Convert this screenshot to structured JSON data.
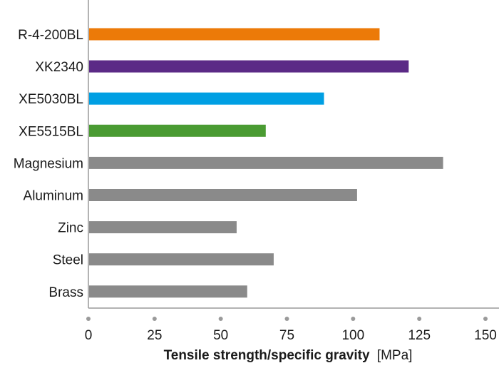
{
  "chart_data": {
    "type": "bar",
    "orientation": "horizontal",
    "title": "",
    "xlabel_bold": "Tensile strength/specific gravity",
    "xlabel_unit": "[MPa]",
    "ylabel": "",
    "xlim": [
      0,
      150
    ],
    "xticks": [
      "0",
      "25",
      "50",
      "75",
      "100",
      "125",
      "150"
    ],
    "xtick_values": [
      0,
      25,
      50,
      75,
      100,
      125,
      150
    ],
    "grid": false,
    "categories": [
      "R-4-200BL",
      "XK2340",
      "XE5030BL",
      "XE5515BL",
      "Magnesium",
      "Aluminum",
      "Zinc",
      "Steel",
      "Brass"
    ],
    "values": [
      110,
      121,
      89,
      67,
      134,
      101.5,
      56,
      70,
      60
    ],
    "colors": [
      "#ec7a08",
      "#5b2a86",
      "#009fe3",
      "#4a9b32",
      "#8a8a8a",
      "#8a8a8a",
      "#8a8a8a",
      "#8a8a8a",
      "#8a8a8a"
    ]
  },
  "colors": {
    "axis": "#9a9a9a",
    "tick_dot": "#9a9a9a"
  }
}
